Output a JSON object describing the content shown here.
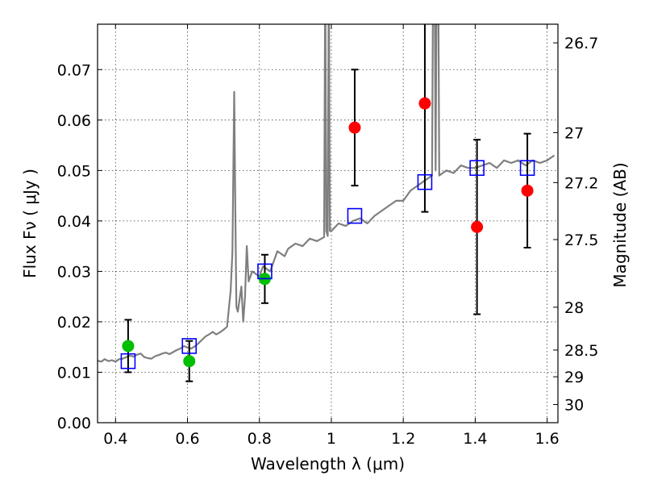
{
  "chart_data": {
    "type": "scatter",
    "title": "",
    "xlabel": "Wavelength  λ (μm)",
    "ylabel": "Flux  Fν  ( μJy )",
    "ylabel_right": "Magnitude (AB)",
    "xlim": [
      0.35,
      1.63
    ],
    "ylim": [
      0.0,
      0.079
    ],
    "grid": true,
    "x_ticks": [
      0.4,
      0.6,
      0.8,
      1.0,
      1.2,
      1.4,
      1.6
    ],
    "x_tick_labels": [
      "0.4",
      "0.6",
      "0.8",
      "1",
      "1.2",
      "1.4",
      "1.6"
    ],
    "y_ticks": [
      0.0,
      0.01,
      0.02,
      0.03,
      0.04,
      0.05,
      0.06,
      0.07
    ],
    "y_tick_labels": [
      "0.00",
      "0.01",
      "0.02",
      "0.03",
      "0.04",
      "0.05",
      "0.06",
      "0.07"
    ],
    "right_ticks": [
      {
        "label": "26.7",
        "flux": 0.0753
      },
      {
        "label": "27",
        "flux": 0.0575
      },
      {
        "label": "27.2",
        "flux": 0.0476
      },
      {
        "label": "27.5",
        "flux": 0.0363
      },
      {
        "label": "28",
        "flux": 0.0229
      },
      {
        "label": "28.5",
        "flux": 0.0144
      },
      {
        "label": "29",
        "flux": 0.0091
      },
      {
        "label": "30",
        "flux": 0.0036
      }
    ],
    "colors": {
      "model": "#7f7f7f",
      "green": "#00bf00",
      "red": "#ff0000",
      "square": "#0000ff",
      "errorbar": "#000000"
    },
    "series": [
      {
        "type": "line",
        "x": [
          0.35,
          0.36,
          0.37,
          0.38,
          0.39,
          0.4,
          0.41,
          0.42,
          0.43,
          0.44,
          0.45,
          0.46,
          0.47,
          0.48,
          0.49,
          0.5,
          0.51,
          0.52,
          0.53,
          0.54,
          0.55,
          0.56,
          0.57,
          0.58,
          0.59,
          0.6,
          0.61,
          0.62,
          0.63,
          0.64,
          0.65,
          0.66,
          0.67,
          0.68,
          0.69,
          0.7,
          0.71,
          0.72,
          0.725,
          0.73,
          0.733,
          0.736,
          0.74,
          0.75,
          0.755,
          0.76,
          0.765,
          0.77,
          0.78,
          0.79,
          0.8,
          0.81,
          0.82,
          0.83,
          0.84,
          0.85,
          0.86,
          0.87,
          0.88,
          0.9,
          0.92,
          0.94,
          0.96,
          0.98,
          0.983,
          0.986,
          0.99,
          0.993,
          0.996,
          1.0,
          1.02,
          1.04,
          1.06,
          1.08,
          1.1,
          1.12,
          1.14,
          1.16,
          1.18,
          1.2,
          1.22,
          1.24,
          1.26,
          1.28,
          1.285,
          1.29,
          1.295,
          1.3,
          1.32,
          1.34,
          1.36,
          1.38,
          1.4,
          1.42,
          1.44,
          1.46,
          1.48,
          1.5,
          1.52,
          1.54,
          1.56,
          1.58,
          1.6,
          1.62
        ],
        "y": [
          0.0123,
          0.0121,
          0.0126,
          0.0122,
          0.0124,
          0.0121,
          0.0126,
          0.0127,
          0.013,
          0.0133,
          0.0131,
          0.0135,
          0.0137,
          0.013,
          0.0128,
          0.0127,
          0.0132,
          0.0134,
          0.0137,
          0.0139,
          0.0136,
          0.014,
          0.0144,
          0.0147,
          0.0152,
          0.0149,
          0.0147,
          0.0151,
          0.0157,
          0.0164,
          0.0171,
          0.0175,
          0.018,
          0.0175,
          0.0179,
          0.0184,
          0.019,
          0.0262,
          0.034,
          0.0656,
          0.042,
          0.023,
          0.022,
          0.027,
          0.02,
          0.025,
          0.035,
          0.028,
          0.03,
          0.0295,
          0.029,
          0.031,
          0.0305,
          0.03,
          0.032,
          0.034,
          0.0335,
          0.033,
          0.0345,
          0.0355,
          0.035,
          0.0365,
          0.036,
          0.0368,
          0.09,
          0.038,
          0.037,
          0.09,
          0.038,
          0.038,
          0.0395,
          0.039,
          0.04,
          0.0405,
          0.0395,
          0.041,
          0.042,
          0.043,
          0.044,
          0.044,
          0.046,
          0.047,
          0.048,
          0.049,
          0.12,
          0.05,
          0.12,
          0.049,
          0.05,
          0.0495,
          0.051,
          0.0505,
          0.0505,
          0.051,
          0.0515,
          0.0505,
          0.052,
          0.0515,
          0.052,
          0.051,
          0.052,
          0.0515,
          0.052,
          0.053
        ]
      },
      {
        "type": "scatter",
        "marker": "circle",
        "color": "green",
        "x": [
          0.435,
          0.605,
          0.815
        ],
        "y": [
          0.0152,
          0.0122,
          0.0285
        ],
        "yerr": [
          0.0052,
          0.004,
          0.0048
        ]
      },
      {
        "type": "scatter",
        "marker": "circle",
        "color": "red",
        "x": [
          1.065,
          1.26,
          1.405,
          1.545
        ],
        "y": [
          0.0585,
          0.0633,
          0.0388,
          0.046
        ],
        "yerr": [
          0.0115,
          0.0215,
          0.0173,
          0.0113
        ]
      },
      {
        "type": "scatter",
        "marker": "square-open",
        "color": "square",
        "x": [
          0.435,
          0.605,
          0.815,
          1.065,
          1.26,
          1.405,
          1.545
        ],
        "y": [
          0.0122,
          0.0152,
          0.03,
          0.041,
          0.0477,
          0.0505,
          0.0505
        ]
      }
    ]
  }
}
